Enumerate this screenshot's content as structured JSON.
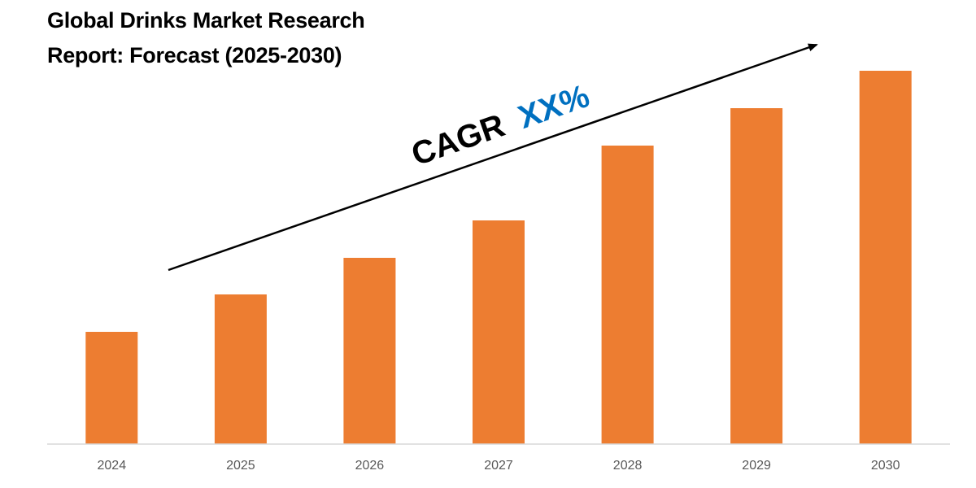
{
  "chart_data": {
    "type": "bar",
    "title_lines": [
      "Global Drinks Market Research",
      "Report: Forecast (2025-2030)"
    ],
    "categories": [
      "2024",
      "2025",
      "2026",
      "2027",
      "2028",
      "2029",
      "2030"
    ],
    "values": [
      138,
      184,
      229,
      275,
      367,
      413,
      459
    ],
    "ylim": [
      0,
      500
    ],
    "xlabel": "",
    "ylabel": "",
    "grid": false,
    "legend": "none",
    "bar_color": "#ED7D31",
    "annotation": {
      "prefix": "CAGR",
      "value": "XX%",
      "prefix_color": "#000000",
      "value_color": "#0070C0",
      "arrow": "increasing trend arrow"
    }
  }
}
